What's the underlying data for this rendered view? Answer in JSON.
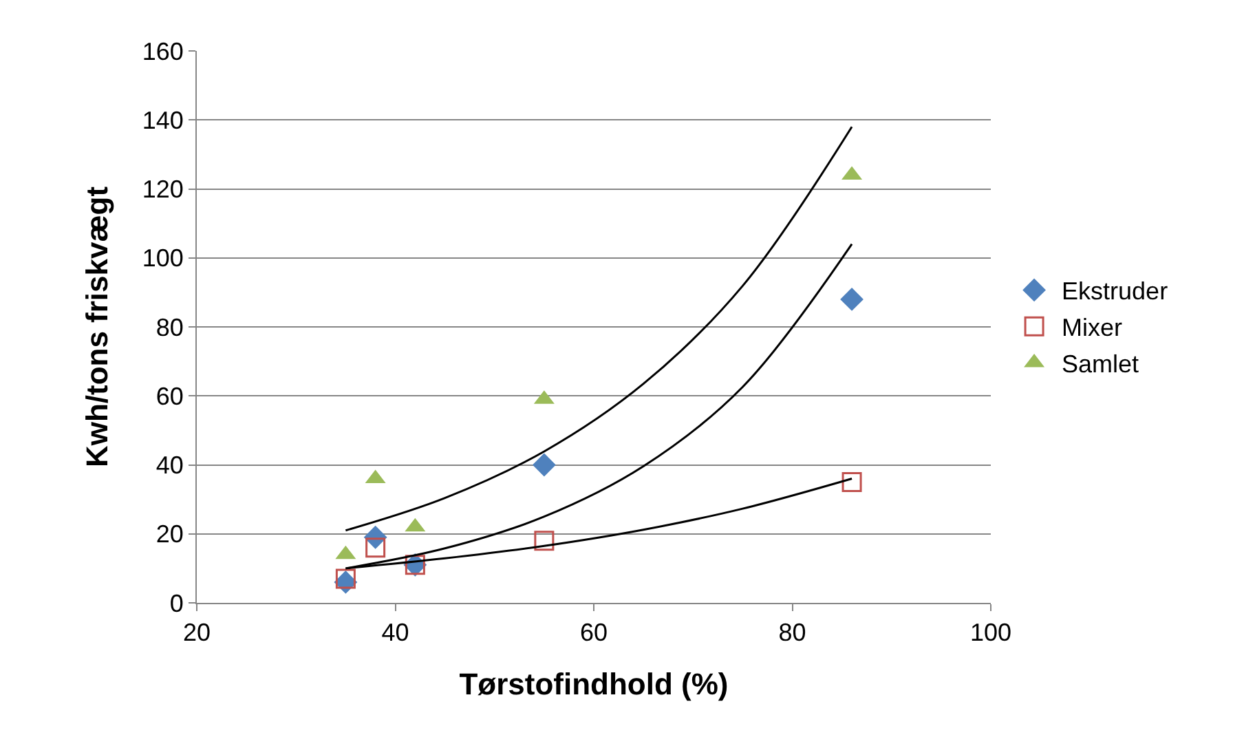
{
  "chart_data": {
    "type": "scatter",
    "xlabel": "Tørstofindhold (%)",
    "ylabel": "Kwh/tons friskvægt",
    "xlim": [
      20,
      100
    ],
    "xticks": [
      20,
      40,
      60,
      80,
      100
    ],
    "ylim": [
      0,
      160
    ],
    "yticks": [
      0,
      20,
      40,
      60,
      80,
      100,
      120,
      140,
      160
    ],
    "grid": "y",
    "legend": "right",
    "series": [
      {
        "name": "Ekstruder",
        "color": "#4f81bd",
        "marker": "diamond",
        "x": [
          35,
          38,
          42,
          55,
          86
        ],
        "values": [
          6,
          19,
          11,
          40,
          88
        ]
      },
      {
        "name": "Mixer",
        "color": "#c0504d",
        "marker": "square",
        "x": [
          35,
          38,
          42,
          55,
          86
        ],
        "values": [
          7,
          16,
          11,
          18,
          35
        ]
      },
      {
        "name": "Samlet",
        "color": "#9bbb59",
        "marker": "triangle",
        "x": [
          35,
          38,
          42,
          55,
          86
        ],
        "values": [
          14,
          36,
          22,
          59,
          124
        ]
      },
      {
        "type": "line",
        "color": "#000000",
        "marker": "none",
        "x": [
          35,
          45,
          55,
          65,
          75,
          86
        ],
        "values": [
          21,
          30.4,
          43.9,
          63.5,
          91.9,
          138
        ]
      },
      {
        "type": "line",
        "color": "#000000",
        "marker": "none",
        "x": [
          35,
          45,
          55,
          65,
          75,
          86
        ],
        "values": [
          10,
          15.8,
          25,
          39.6,
          62.6,
          104
        ]
      },
      {
        "type": "line",
        "color": "#000000",
        "marker": "none",
        "x": [
          35,
          45,
          55,
          65,
          75,
          86
        ],
        "values": [
          10,
          12.9,
          16.5,
          21.2,
          27.3,
          36
        ]
      }
    ]
  }
}
